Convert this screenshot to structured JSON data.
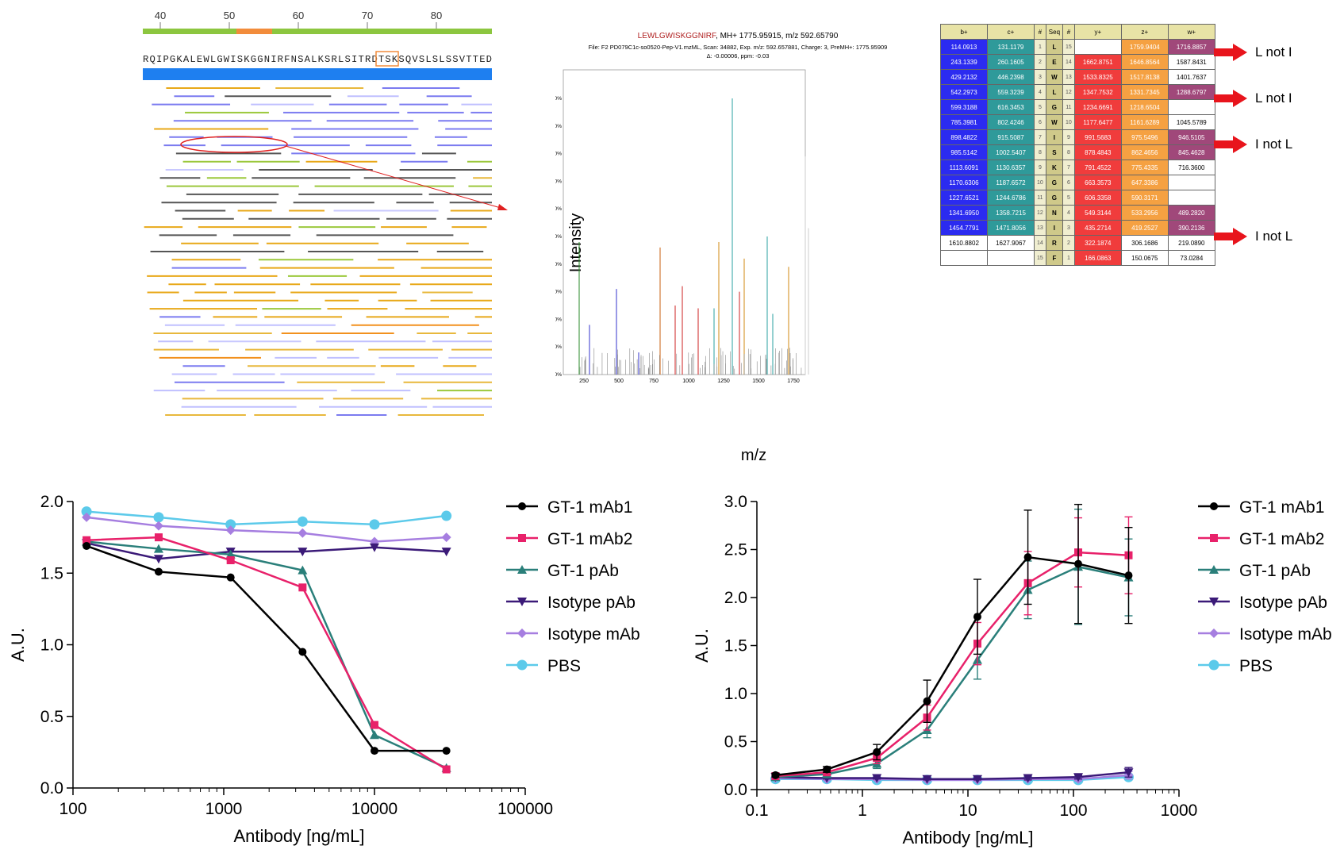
{
  "coverage": {
    "ruler_ticks": [
      "40",
      "50",
      "60",
      "70",
      "80"
    ],
    "sequence": "RQIPGKALEWLGWISKGGNIRFNSALKSRLSITRDTSKSQVSLSLSSVTTED"
  },
  "spectrum": {
    "title_peptide": "LEWLGWISKGGNIRF",
    "title_rest": ", MH+ 1775.95915, m/z 592.65790",
    "line2": "File: F2 PD079C1c-so0520-Pep-V1.mzML, Scan: 34882, Exp. m/z: 592.657881, Charge: 3, PreMH+: 1775.95909",
    "line3": "Δ: -0.00006, ppm: -0.03",
    "ylabel": "Intensity",
    "xlabel": "m/z",
    "yticks": [
      "0%",
      "10%",
      "20%",
      "30%",
      "40%",
      "50%",
      "60%",
      "70%",
      "80%",
      "90%",
      "100%"
    ],
    "xticks": [
      "250",
      "500",
      "750",
      "1000",
      "1250",
      "1500",
      "1750"
    ]
  },
  "ion_table": {
    "headers": [
      "b+",
      "c+",
      "#",
      "Seq",
      "#",
      "y+",
      "z+",
      "w+"
    ],
    "rows": [
      [
        "114.0913",
        "131.1179",
        "1",
        "L",
        "15",
        "",
        "1759.9404",
        "1716.8857"
      ],
      [
        "243.1339",
        "260.1605",
        "2",
        "E",
        "14",
        "1662.8751",
        "1646.8564",
        "1587.8431"
      ],
      [
        "429.2132",
        "446.2398",
        "3",
        "W",
        "13",
        "1533.8325",
        "1517.8138",
        "1401.7637"
      ],
      [
        "542.2973",
        "559.3239",
        "4",
        "L",
        "12",
        "1347.7532",
        "1331.7345",
        "1288.6797"
      ],
      [
        "599.3188",
        "616.3453",
        "5",
        "G",
        "11",
        "1234.6691",
        "1218.6504",
        ""
      ],
      [
        "785.3981",
        "802.4246",
        "6",
        "W",
        "10",
        "1177.6477",
        "1161.6289",
        "1045.5789"
      ],
      [
        "898.4822",
        "915.5087",
        "7",
        "I",
        "9",
        "991.5683",
        "975.5496",
        "946.5105"
      ],
      [
        "985.5142",
        "1002.5407",
        "8",
        "S",
        "8",
        "878.4843",
        "862.4656",
        "845.4628"
      ],
      [
        "1113.6091",
        "1130.6357",
        "9",
        "K",
        "7",
        "791.4522",
        "775.4335",
        "716.3600"
      ],
      [
        "1170.6306",
        "1187.6572",
        "10",
        "G",
        "6",
        "663.3573",
        "647.3386",
        ""
      ],
      [
        "1227.6521",
        "1244.6786",
        "11",
        "G",
        "5",
        "606.3358",
        "590.3171",
        ""
      ],
      [
        "1341.6950",
        "1358.7215",
        "12",
        "N",
        "4",
        "549.3144",
        "533.2956",
        "489.2820"
      ],
      [
        "1454.7791",
        "1471.8056",
        "13",
        "I",
        "3",
        "435.2714",
        "419.2527",
        "390.2136"
      ],
      [
        "1610.8802",
        "1627.9067",
        "14",
        "R",
        "2",
        "322.1874",
        "306.1686",
        "219.0890"
      ],
      [
        "",
        "",
        "15",
        "F",
        "1",
        "166.0863",
        "150.0675",
        "73.0284"
      ]
    ],
    "annotations": [
      "L not I",
      "L not I",
      "I not L",
      "I not L"
    ],
    "colors": {
      "b": "#2b2bf0",
      "c": "#2f9a9a",
      "y": "#f03c3c",
      "z": "#f5a142",
      "w": "#a0487a",
      "seq": "#cfc98a"
    }
  },
  "chart_data": [
    {
      "type": "line",
      "xscale": "log",
      "xlim": [
        100,
        100000
      ],
      "ylim": [
        0,
        2.0
      ],
      "xlabel": "Antibody [ng/mL]",
      "ylabel": "A.U.",
      "xticks": [
        "100",
        "1000",
        "10000",
        "100000"
      ],
      "yticks": [
        "0.0",
        "0.5",
        "1.0",
        "1.5",
        "2.0"
      ],
      "legend_position": "right",
      "x": [
        123,
        370,
        1111,
        3333,
        10000,
        30000
      ],
      "series": [
        {
          "name": "GT-1 mAb1",
          "color": "#000000",
          "marker": "circle",
          "values": [
            1.69,
            1.51,
            1.47,
            0.95,
            0.26,
            0.26
          ]
        },
        {
          "name": "GT-1 mAb2",
          "color": "#e8216a",
          "marker": "square",
          "values": [
            1.73,
            1.75,
            1.59,
            1.4,
            0.44,
            0.13
          ]
        },
        {
          "name": "GT-1 pAb",
          "color": "#2a7f7a",
          "marker": "triangle-up",
          "values": [
            1.72,
            1.67,
            1.63,
            1.52,
            0.37,
            0.14
          ]
        },
        {
          "name": "Isotype pAb",
          "color": "#3b1a78",
          "marker": "triangle-down",
          "values": [
            1.71,
            1.6,
            1.65,
            1.65,
            1.68,
            1.65
          ]
        },
        {
          "name": "Isotype mAb",
          "color": "#a67ee0",
          "marker": "diamond",
          "values": [
            1.89,
            1.83,
            1.8,
            1.78,
            1.72,
            1.75
          ]
        },
        {
          "name": "PBS",
          "color": "#5ccaea",
          "marker": "circle-big",
          "values": [
            1.93,
            1.89,
            1.84,
            1.86,
            1.84,
            1.9
          ]
        }
      ]
    },
    {
      "type": "line",
      "xscale": "log",
      "xlim": [
        0.1,
        1000
      ],
      "ylim": [
        0,
        3.0
      ],
      "xlabel": "Antibody [ng/mL]",
      "ylabel": "A.U.",
      "xticks": [
        "0.1",
        "1",
        "10",
        "100",
        "1000"
      ],
      "yticks": [
        "0.0",
        "0.5",
        "1.0",
        "1.5",
        "2.0",
        "2.5",
        "3.0"
      ],
      "legend_position": "right",
      "x": [
        0.15,
        0.46,
        1.37,
        4.1,
        12.3,
        37,
        111,
        333
      ],
      "series": [
        {
          "name": "GT-1 mAb1",
          "color": "#000000",
          "marker": "circle",
          "values": [
            0.15,
            0.21,
            0.39,
            0.92,
            1.8,
            2.42,
            2.35,
            2.23
          ],
          "errors": [
            0.02,
            0.03,
            0.08,
            0.22,
            0.39,
            0.49,
            0.62,
            0.5
          ]
        },
        {
          "name": "GT-1 mAb2",
          "color": "#e8216a",
          "marker": "square",
          "values": [
            0.14,
            0.18,
            0.33,
            0.75,
            1.52,
            2.15,
            2.47,
            2.44
          ],
          "errors": [
            0.02,
            0.03,
            0.06,
            0.13,
            0.22,
            0.33,
            0.36,
            0.4
          ]
        },
        {
          "name": "GT-1 pAb",
          "color": "#2a7f7a",
          "marker": "triangle-up",
          "values": [
            0.13,
            0.16,
            0.27,
            0.62,
            1.35,
            2.08,
            2.32,
            2.21
          ],
          "errors": [
            0.02,
            0.03,
            0.05,
            0.08,
            0.2,
            0.3,
            0.6,
            0.4
          ]
        },
        {
          "name": "Isotype pAb",
          "color": "#3b1a78",
          "marker": "triangle-down",
          "values": [
            0.13,
            0.12,
            0.12,
            0.11,
            0.11,
            0.12,
            0.13,
            0.18
          ],
          "errors": [
            0.01,
            0.01,
            0.01,
            0.01,
            0.01,
            0.02,
            0.02,
            0.05
          ]
        },
        {
          "name": "Isotype mAb",
          "color": "#a67ee0",
          "marker": "diamond",
          "values": [
            0.12,
            0.11,
            0.11,
            0.1,
            0.1,
            0.11,
            0.11,
            0.15
          ],
          "errors": [
            0.01,
            0.01,
            0.01,
            0.01,
            0.01,
            0.01,
            0.02,
            0.04
          ]
        },
        {
          "name": "PBS",
          "color": "#5ccaea",
          "marker": "circle-big",
          "values": [
            0.11,
            0.11,
            0.1,
            0.1,
            0.1,
            0.1,
            0.1,
            0.13
          ],
          "errors": [
            0.01,
            0.01,
            0.01,
            0.01,
            0.01,
            0.01,
            0.01,
            0.03
          ]
        }
      ]
    }
  ]
}
